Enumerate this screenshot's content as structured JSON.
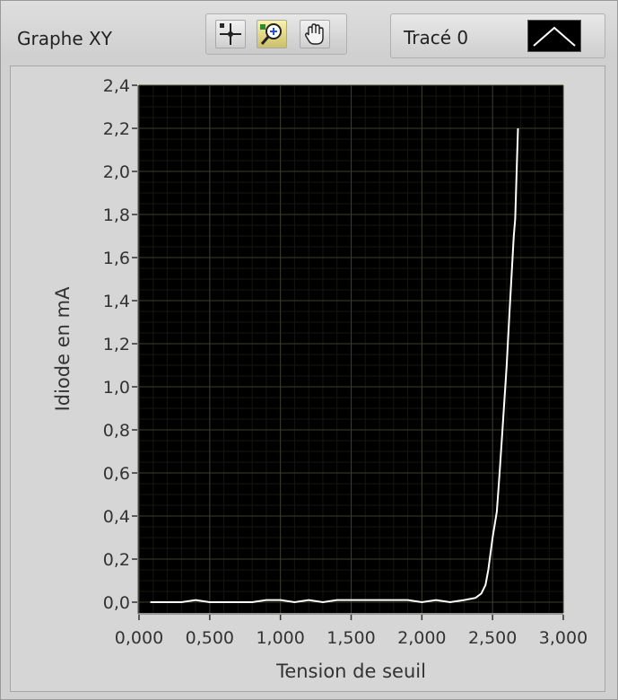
{
  "graph": {
    "title": "Graphe XY",
    "legend_label": "Tracé 0"
  },
  "tools": [
    {
      "name": "cursor-move-icon"
    },
    {
      "name": "zoom-icon"
    },
    {
      "name": "pan-hand-icon"
    }
  ],
  "colors": {
    "plot_background": "#000000",
    "grid": "#3a3f2a",
    "curve": "#ffffff"
  },
  "chart_data": {
    "type": "line",
    "title": "",
    "xlabel": "Tension de seuil",
    "ylabel": "Idiode en mA",
    "xlim": [
      0,
      3.0
    ],
    "ylim": [
      -0.05,
      2.4
    ],
    "grid": true,
    "xticks": [
      "0,000",
      "0,500",
      "1,000",
      "1,500",
      "2,000",
      "2,500",
      "3,000"
    ],
    "yticks": [
      "0,0",
      "0,2",
      "0,4",
      "0,6",
      "0,8",
      "1,0",
      "1,2",
      "1,4",
      "1,6",
      "1,8",
      "2,0",
      "2,2",
      "2,4"
    ],
    "series": [
      {
        "x": [
          0.08,
          0.2,
          0.3,
          0.4,
          0.5,
          0.6,
          0.7,
          0.8,
          0.9,
          1.0,
          1.1,
          1.2,
          1.3,
          1.4,
          1.5,
          1.6,
          1.7,
          1.8,
          1.9,
          2.0,
          2.1,
          2.2,
          2.3,
          2.38,
          2.42,
          2.45,
          2.47,
          2.5,
          2.53,
          2.55,
          2.57,
          2.6,
          2.62,
          2.64,
          2.65,
          2.66,
          2.67,
          2.68
        ],
        "y": [
          0.0,
          0.0,
          0.0,
          0.01,
          0.0,
          0.0,
          0.0,
          0.0,
          0.01,
          0.01,
          0.0,
          0.01,
          0.0,
          0.01,
          0.01,
          0.01,
          0.01,
          0.01,
          0.01,
          0.0,
          0.01,
          0.0,
          0.01,
          0.02,
          0.04,
          0.08,
          0.15,
          0.3,
          0.42,
          0.6,
          0.8,
          1.1,
          1.35,
          1.58,
          1.7,
          1.78,
          2.0,
          2.2
        ]
      }
    ]
  }
}
